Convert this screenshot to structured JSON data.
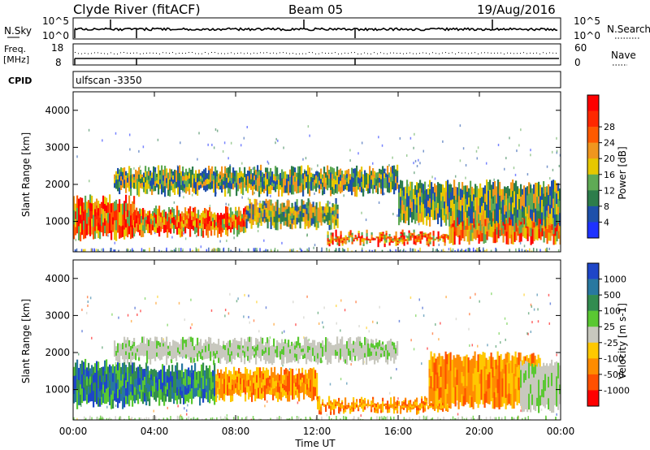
{
  "header": {
    "station": "Clyde River (fitACF)",
    "beam": "Beam 05",
    "date": "19/Aug/2016"
  },
  "status_panels": {
    "nsky_label": "N.Sky",
    "nsky_ticks": [
      "10^5",
      "10^0"
    ],
    "nsearch_label": "N.Search",
    "nsearch_ticks": [
      "10^5",
      "10^0"
    ],
    "freq_label_line1": "Freq.",
    "freq_label_line2": "[MHz]",
    "freq_ticks": [
      "18",
      "8"
    ],
    "nave_label": "Nave",
    "nave_ticks": [
      "60",
      "0"
    ],
    "cpid_label": "CPID",
    "cpid_value": "ulfscan -3350"
  },
  "chart_data": [
    {
      "type": "heatmap",
      "title": "",
      "quantity": "Power",
      "xlabel": "Time UT",
      "ylabel": "Slant Range [km]",
      "x_ticks": [
        "00:00",
        "04:00",
        "08:00",
        "12:00",
        "16:00",
        "20:00",
        "00:00"
      ],
      "y_ticks": [
        1000,
        2000,
        3000,
        4000
      ],
      "ylim": [
        180,
        4500
      ],
      "colorbar": {
        "label": "Power [dB]",
        "ticks": [
          "4",
          "8",
          "12",
          "16",
          "20",
          "24",
          "28"
        ],
        "colors": [
          "#1e32ff",
          "#1e50aa",
          "#2d7d4b",
          "#5faa55",
          "#e6c800",
          "#f0961e",
          "#ff5a00",
          "#ff2800",
          "#ff0000"
        ]
      },
      "regions": [
        {
          "t_start": 0.0,
          "t_end": 3.0,
          "r_start": 600,
          "r_end": 1600,
          "level": "strong"
        },
        {
          "t_start": 3.0,
          "t_end": 8.5,
          "r_start": 700,
          "r_end": 1300,
          "level": "strong"
        },
        {
          "t_start": 8.5,
          "t_end": 13.0,
          "r_start": 900,
          "r_end": 1500,
          "level": "moderate"
        },
        {
          "t_start": 2.0,
          "t_end": 16.0,
          "r_start": 1800,
          "r_end": 2400,
          "level": "moderate"
        },
        {
          "t_start": 12.5,
          "t_end": 18.5,
          "r_start": 450,
          "r_end": 650,
          "level": "strong"
        },
        {
          "t_start": 18.5,
          "t_end": 24.0,
          "r_start": 500,
          "r_end": 1500,
          "level": "strong"
        },
        {
          "t_start": 16.0,
          "t_end": 24.0,
          "r_start": 1000,
          "r_end": 2000,
          "level": "moderate"
        }
      ]
    },
    {
      "type": "heatmap",
      "title": "",
      "quantity": "Velocity",
      "xlabel": "Time UT",
      "ylabel": "Slant Range [km]",
      "x_ticks": [
        "00:00",
        "04:00",
        "08:00",
        "12:00",
        "16:00",
        "20:00",
        "00:00"
      ],
      "y_ticks": [
        1000,
        2000,
        3000,
        4000
      ],
      "ylim": [
        180,
        4500
      ],
      "colorbar": {
        "label": "Velocity [m s-1]",
        "ticks": [
          "1000",
          "500",
          "100",
          "25",
          "-25",
          "-100",
          "-500",
          "-1000"
        ],
        "colors": [
          "#1e46c8",
          "#2878a0",
          "#328c50",
          "#5ac832",
          "#c8c8be",
          "#ffc800",
          "#ff8c00",
          "#ff5000",
          "#ff0000"
        ]
      },
      "regions": [
        {
          "t_start": 0.0,
          "t_end": 3.0,
          "r_start": 600,
          "r_end": 1700,
          "level": "positive"
        },
        {
          "t_start": 3.0,
          "t_end": 7.0,
          "r_start": 700,
          "r_end": 1600,
          "level": "positive"
        },
        {
          "t_start": 7.0,
          "t_end": 12.0,
          "r_start": 800,
          "r_end": 1500,
          "level": "negative"
        },
        {
          "t_start": 2.0,
          "t_end": 16.0,
          "r_start": 1800,
          "r_end": 2300,
          "level": "near-zero"
        },
        {
          "t_start": 12.0,
          "t_end": 18.5,
          "r_start": 450,
          "r_end": 700,
          "level": "negative"
        },
        {
          "t_start": 17.5,
          "t_end": 23.0,
          "r_start": 600,
          "r_end": 1900,
          "level": "negative"
        },
        {
          "t_start": 22.0,
          "t_end": 24.0,
          "r_start": 500,
          "r_end": 1700,
          "level": "near-zero"
        }
      ]
    }
  ]
}
